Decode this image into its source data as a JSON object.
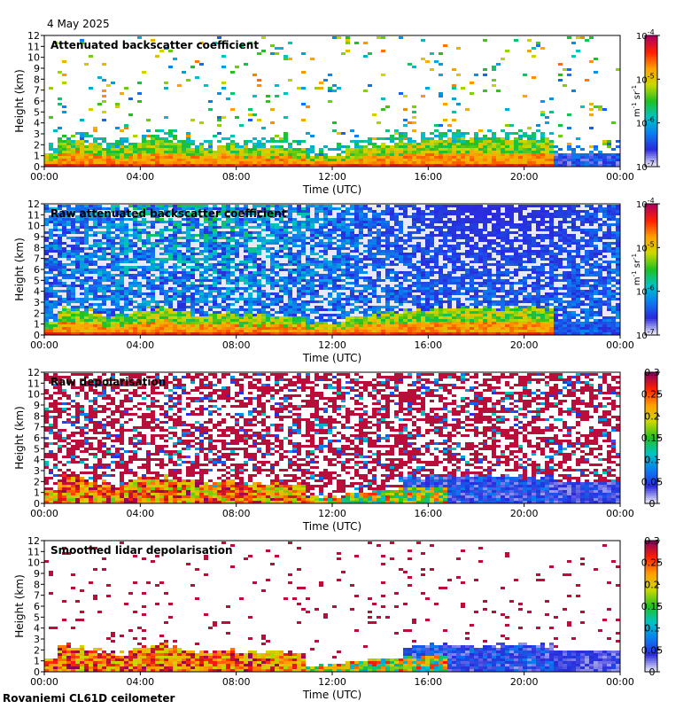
{
  "date": "4 May 2025",
  "footer": "Rovaniemi CL61D ceilometer",
  "chart_data": [
    {
      "type": "heatmap",
      "title": "Attenuated backscatter coefficient",
      "xlabel": "Time (UTC)",
      "ylabel": "Height (km)",
      "xticks": [
        "00:00",
        "04:00",
        "08:00",
        "12:00",
        "16:00",
        "20:00",
        "00:00"
      ],
      "yticks": [
        "0",
        "1",
        "2",
        "3",
        "4",
        "5",
        "6",
        "7",
        "8",
        "9",
        "10",
        "11",
        "12"
      ],
      "ylim": [
        0,
        12
      ],
      "colorbar": {
        "scale": "log",
        "ticks": [
          {
            "base": "10",
            "exp": "-4"
          },
          {
            "base": "10",
            "exp": "-5"
          },
          {
            "base": "10",
            "exp": "-6"
          },
          {
            "base": "10",
            "exp": "-7"
          }
        ],
        "unit": {
          "m": "m",
          "m_exp": "-1",
          "sr": "sr",
          "sr_exp": "-1"
        },
        "colors": [
          "#e8e8f8",
          "#2a2add",
          "#0a7ef0",
          "#00c4c4",
          "#20c020",
          "#ccd800",
          "#ffa000",
          "#ff2000",
          "#b00060"
        ]
      },
      "style": "backscatter"
    },
    {
      "type": "heatmap",
      "title": "Raw attenuated backscatter coefficient",
      "xlabel": "Time (UTC)",
      "ylabel": "Height (km)",
      "xticks": [
        "00:00",
        "04:00",
        "08:00",
        "12:00",
        "16:00",
        "20:00",
        "00:00"
      ],
      "yticks": [
        "0",
        "1",
        "2",
        "3",
        "4",
        "5",
        "6",
        "7",
        "8",
        "9",
        "10",
        "11",
        "12"
      ],
      "ylim": [
        0,
        12
      ],
      "colorbar": {
        "scale": "log",
        "ticks": [
          {
            "base": "10",
            "exp": "-4"
          },
          {
            "base": "10",
            "exp": "-5"
          },
          {
            "base": "10",
            "exp": "-6"
          },
          {
            "base": "10",
            "exp": "-7"
          }
        ],
        "unit": {
          "m": "m",
          "m_exp": "-1",
          "sr": "sr",
          "sr_exp": "-1"
        },
        "colors": [
          "#e8e8f8",
          "#2a2add",
          "#0a7ef0",
          "#00c4c4",
          "#20c020",
          "#ccd800",
          "#ffa000",
          "#ff2000",
          "#b00060"
        ]
      },
      "style": "raw-backscatter"
    },
    {
      "type": "heatmap",
      "title": "Raw depolarisation",
      "xlabel": "Time (UTC)",
      "ylabel": "Height (km)",
      "xticks": [
        "00:00",
        "04:00",
        "08:00",
        "12:00",
        "16:00",
        "20:00",
        "00:00"
      ],
      "yticks": [
        "0",
        "1",
        "2",
        "3",
        "4",
        "5",
        "6",
        "7",
        "8",
        "9",
        "10",
        "11",
        "12"
      ],
      "ylim": [
        0,
        12
      ],
      "colorbar": {
        "scale": "linear",
        "ticks": [
          "0.3",
          "0.25",
          "0.2",
          "0.15",
          "0.1",
          "0.05",
          "0"
        ],
        "range": [
          0,
          0.3
        ],
        "colors": [
          "#e8e8f8",
          "#2a2add",
          "#0a7ef0",
          "#00c4c4",
          "#20c020",
          "#ccd800",
          "#ffa000",
          "#ff2000",
          "#8a0060"
        ]
      },
      "style": "raw-depol"
    },
    {
      "type": "heatmap",
      "title": "Smoothed lidar depolarisation",
      "xlabel": "Time (UTC)",
      "ylabel": "Height (km)",
      "xticks": [
        "00:00",
        "04:00",
        "08:00",
        "12:00",
        "16:00",
        "20:00",
        "00:00"
      ],
      "yticks": [
        "0",
        "1",
        "2",
        "3",
        "4",
        "5",
        "6",
        "7",
        "8",
        "9",
        "10",
        "11",
        "12"
      ],
      "ylim": [
        0,
        12
      ],
      "colorbar": {
        "scale": "linear",
        "ticks": [
          "0.3",
          "0.25",
          "0.2",
          "0.15",
          "0.1",
          "0.05",
          "0"
        ],
        "range": [
          0,
          0.3
        ],
        "colors": [
          "#e8e8f8",
          "#2a2add",
          "#0a7ef0",
          "#00c4c4",
          "#20c020",
          "#ccd800",
          "#ffa000",
          "#ff2000",
          "#8a0060"
        ]
      },
      "style": "smooth-depol"
    }
  ]
}
